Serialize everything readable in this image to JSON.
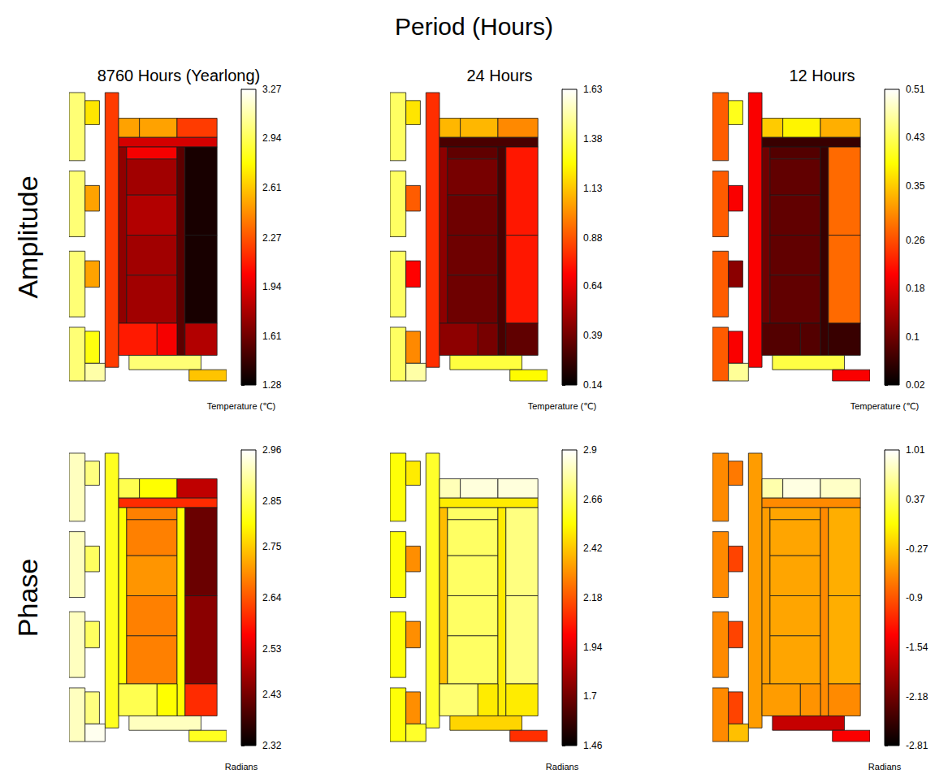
{
  "chart_data": {
    "type": "heatmap",
    "title": "Period (Hours)",
    "columns": [
      "8760 Hours (Yearlong)",
      "24 Hours",
      "12 Hours"
    ],
    "rows": [
      {
        "label": "Amplitude",
        "colorbar_label": "Temperature (℃)"
      },
      {
        "label": "Phase",
        "colorbar_label": "Radians"
      }
    ],
    "xlim": [
      0,
      197
    ],
    "ylim": [
      0,
      365
    ],
    "zones": [
      [
        0,
        2,
        20,
        87
      ],
      [
        0,
        100,
        20,
        182
      ],
      [
        0,
        200,
        20,
        282
      ],
      [
        0,
        295,
        20,
        362
      ],
      [
        20,
        12,
        38,
        42
      ],
      [
        20,
        118,
        38,
        150
      ],
      [
        20,
        212,
        38,
        245
      ],
      [
        20,
        300,
        38,
        340
      ],
      [
        45,
        2,
        62,
        345
      ],
      [
        62,
        34,
        88,
        58
      ],
      [
        88,
        34,
        135,
        58
      ],
      [
        135,
        34,
        185,
        58
      ],
      [
        62,
        58,
        185,
        70
      ],
      [
        62,
        70,
        72,
        290
      ],
      [
        72,
        70,
        135,
        85
      ],
      [
        72,
        85,
        135,
        130
      ],
      [
        72,
        130,
        135,
        180
      ],
      [
        72,
        180,
        135,
        230
      ],
      [
        72,
        230,
        135,
        290
      ],
      [
        135,
        70,
        145,
        330
      ],
      [
        145,
        70,
        185,
        180
      ],
      [
        145,
        180,
        185,
        290
      ],
      [
        62,
        290,
        110,
        330
      ],
      [
        110,
        290,
        135,
        330
      ],
      [
        145,
        290,
        185,
        330
      ],
      [
        75,
        330,
        165,
        348
      ],
      [
        150,
        348,
        197,
        362
      ],
      [
        20,
        340,
        45,
        362
      ]
    ],
    "panels": [
      {
        "row": 0,
        "column": 0,
        "values": [
          3.0,
          3.0,
          3.0,
          3.0,
          2.7,
          2.5,
          2.5,
          2.8,
          2.2,
          2.5,
          2.5,
          2.2,
          1.9,
          1.7,
          2.0,
          1.75,
          1.8,
          1.75,
          1.75,
          1.55,
          1.35,
          1.35,
          2.1,
          2.0,
          1.8,
          3.0,
          2.6,
          3.1
        ],
        "colorbar": {
          "range": [
            1.28,
            3.27
          ],
          "ticks": [
            1.28,
            1.61,
            1.94,
            2.27,
            2.61,
            2.94,
            3.27
          ]
        }
      },
      {
        "row": 0,
        "column": 1,
        "values": [
          1.4,
          1.4,
          1.4,
          1.4,
          1.2,
          0.9,
          0.7,
          1.0,
          0.8,
          1.1,
          1.1,
          1.0,
          0.3,
          0.45,
          0.35,
          0.4,
          0.38,
          0.38,
          0.38,
          0.3,
          0.75,
          0.75,
          0.45,
          0.4,
          0.35,
          1.35,
          1.25,
          1.5
        ],
        "colorbar": {
          "range": [
            0.14,
            1.63
          ],
          "ticks": [
            0.14,
            0.39,
            0.64,
            0.88,
            1.13,
            1.38,
            1.63
          ]
        }
      },
      {
        "row": 0,
        "column": 2,
        "values": [
          0.27,
          0.27,
          0.27,
          0.27,
          0.4,
          0.2,
          0.12,
          0.2,
          0.2,
          0.35,
          0.38,
          0.33,
          0.06,
          0.1,
          0.08,
          0.09,
          0.09,
          0.09,
          0.09,
          0.06,
          0.28,
          0.28,
          0.08,
          0.08,
          0.06,
          0.42,
          0.2,
          0.46
        ],
        "colorbar": {
          "range": [
            0.02,
            0.51
          ],
          "ticks": [
            0.02,
            0.1,
            0.18,
            0.26,
            0.35,
            0.43,
            0.51
          ]
        }
      },
      {
        "row": 1,
        "column": 0,
        "values": [
          2.92,
          2.92,
          2.92,
          2.92,
          2.88,
          2.86,
          2.86,
          2.88,
          2.82,
          2.85,
          2.8,
          2.5,
          2.6,
          2.8,
          2.68,
          2.68,
          2.7,
          2.68,
          2.68,
          2.8,
          2.42,
          2.45,
          2.85,
          2.8,
          2.6,
          2.92,
          2.82,
          2.95
        ],
        "colorbar": {
          "range": [
            2.32,
            2.96
          ],
          "ticks": [
            2.32,
            2.43,
            2.53,
            2.64,
            2.75,
            2.85,
            2.96
          ]
        }
      },
      {
        "row": 1,
        "column": 1,
        "values": [
          2.55,
          2.55,
          2.55,
          2.55,
          2.5,
          2.3,
          2.3,
          2.3,
          2.6,
          2.8,
          2.85,
          2.85,
          2.5,
          2.4,
          2.68,
          2.68,
          2.68,
          2.68,
          2.68,
          2.5,
          2.72,
          2.72,
          2.7,
          2.5,
          2.5,
          2.45,
          2.1,
          2.6
        ],
        "colorbar": {
          "range": [
            1.46,
            2.9
          ],
          "ticks": [
            1.46,
            1.7,
            1.94,
            2.18,
            2.42,
            2.66,
            2.9
          ]
        }
      },
      {
        "row": 1,
        "column": 2,
        "values": [
          -0.6,
          -0.6,
          -0.6,
          -0.6,
          -0.7,
          -1.0,
          -1.0,
          -1.0,
          -0.5,
          0.7,
          0.9,
          0.8,
          -0.6,
          -0.5,
          -0.45,
          -0.45,
          -0.45,
          -0.45,
          -0.45,
          -0.6,
          -0.4,
          -0.4,
          -0.5,
          -0.55,
          -0.6,
          -1.7,
          -1.4,
          -0.3
        ],
        "colorbar": {
          "range": [
            -2.81,
            1.01
          ],
          "ticks": [
            -2.81,
            -2.18,
            -1.54,
            -0.9,
            -0.27,
            0.37,
            1.01
          ]
        }
      }
    ]
  }
}
